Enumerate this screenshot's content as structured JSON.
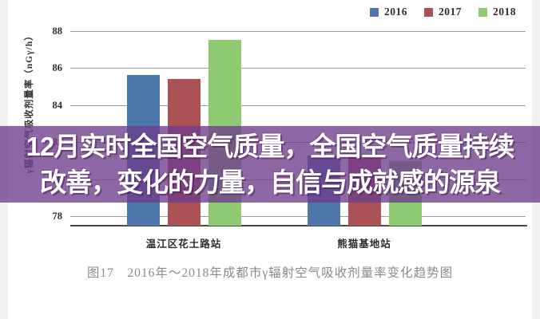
{
  "banner": {
    "line1": "12月实时全国空气质量，全国空气质量持续",
    "line2": "改善，变化的力量，自信与成就感的源泉",
    "bg_color": "#6e3c8c",
    "bg_opacity": 0.78,
    "text_color": "#ffffff"
  },
  "chart_data": {
    "type": "bar",
    "title": "图17　2016年～2018年成都市γ辐射空气吸收剂量率变化趋势图",
    "ylabel": "γ辐射空气吸收剂量率（nGγ/h）",
    "categories": [
      "温江区花土路站",
      "熊猫基地站"
    ],
    "series": [
      {
        "name": "2016",
        "color": "#4d77ab",
        "values": [
          85.6,
          81.3
        ]
      },
      {
        "name": "2017",
        "color": "#ab5257",
        "values": [
          85.4,
          81.2
        ]
      },
      {
        "name": "2018",
        "color": "#8dca72",
        "values": [
          87.5,
          81.0
        ]
      }
    ],
    "yticks": [
      78,
      80,
      82,
      84,
      86,
      88
    ],
    "ylim": [
      77.5,
      88.8
    ],
    "grid": true,
    "legend_position": "top-right",
    "axis_color": "#4a4a4a",
    "gridline_color": "#9a9a9a",
    "tick_color": "#2f2f2f",
    "caption_color": "#8a8a8a"
  }
}
